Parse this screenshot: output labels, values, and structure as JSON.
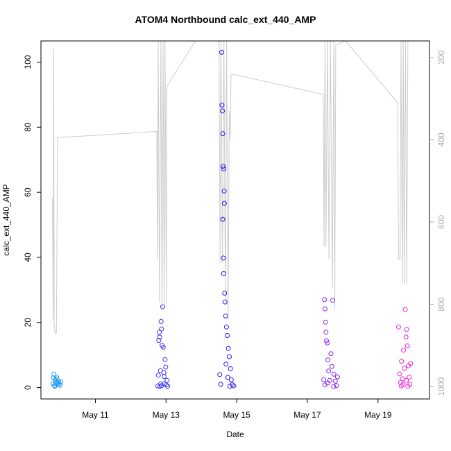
{
  "chart_data": {
    "type": "scatter",
    "title": "ATOM4 Northbound calc_ext_440_AMP",
    "xlabel": "Date",
    "ylabel": "calc_ext_440_AMP",
    "x_ticks": [
      "May 11",
      "May 13",
      "May 15",
      "May 17",
      "May 19"
    ],
    "y_ticks": [
      "0",
      "20",
      "40",
      "60",
      "80",
      "100"
    ],
    "right_ticks": [
      "200",
      "400",
      "600",
      "800",
      "1000"
    ],
    "xlim": [
      "2017-05-09T11:00",
      "2017-05-20T11:00"
    ],
    "ylim": [
      -3.5,
      106.5
    ],
    "right_ylim": [
      1030,
      160
    ],
    "right_axis_reversed": true,
    "grid": false,
    "legend": "none",
    "series": [
      {
        "color": "#1a9bf0",
        "points": [
          {
            "x": "2017-05-09T19:12",
            "y": 1.2
          },
          {
            "x": "2017-05-09T19:50",
            "y": 4.1
          },
          {
            "x": "2017-05-09T20:10",
            "y": 0.6
          },
          {
            "x": "2017-05-09T20:40",
            "y": 2.3
          },
          {
            "x": "2017-05-09T21:05",
            "y": 1.5
          },
          {
            "x": "2017-05-09T21:40",
            "y": 3.2
          },
          {
            "x": "2017-05-09T22:15",
            "y": 0.9
          },
          {
            "x": "2017-05-09T22:50",
            "y": 2.0
          },
          {
            "x": "2017-05-09T23:25",
            "y": 1.1
          },
          {
            "x": "2017-05-10T00:05",
            "y": 0.7
          },
          {
            "x": "2017-05-10T00:30",
            "y": 1.8
          },
          {
            "x": "2017-05-09T20:25",
            "y": 0.4
          },
          {
            "x": "2017-05-09T21:20",
            "y": 2.7
          },
          {
            "x": "2017-05-09T22:30",
            "y": 1.6
          },
          {
            "x": "2017-05-09T19:30",
            "y": 3.0
          }
        ]
      },
      {
        "color": "#3b35f5",
        "points": [
          {
            "x": "2017-05-12T18:20",
            "y": 0.5
          },
          {
            "x": "2017-05-12T18:45",
            "y": 3.8
          },
          {
            "x": "2017-05-12T19:05",
            "y": 14.5
          },
          {
            "x": "2017-05-12T19:25",
            "y": 17.0
          },
          {
            "x": "2017-05-12T19:40",
            "y": 15.5
          },
          {
            "x": "2017-05-12T20:10",
            "y": 5.2
          },
          {
            "x": "2017-05-12T20:35",
            "y": 20.3
          },
          {
            "x": "2017-05-12T20:55",
            "y": 18.0
          },
          {
            "x": "2017-05-12T21:20",
            "y": 13.0
          },
          {
            "x": "2017-05-12T21:40",
            "y": 24.8
          },
          {
            "x": "2017-05-12T22:05",
            "y": 12.4
          },
          {
            "x": "2017-05-12T22:30",
            "y": 4.6
          },
          {
            "x": "2017-05-12T22:55",
            "y": 1.2
          },
          {
            "x": "2017-05-12T23:20",
            "y": 8.6
          },
          {
            "x": "2017-05-12T23:45",
            "y": 6.3
          },
          {
            "x": "2017-05-13T00:10",
            "y": 0.8
          },
          {
            "x": "2017-05-13T00:40",
            "y": 2.2
          },
          {
            "x": "2017-05-13T01:05",
            "y": 0.4
          },
          {
            "x": "2017-05-12T21:00",
            "y": 0.6
          },
          {
            "x": "2017-05-12T20:20",
            "y": 1.1
          },
          {
            "x": "2017-05-12T19:50",
            "y": 0.3
          },
          {
            "x": "2017-05-12T22:40",
            "y": 3.4
          }
        ]
      },
      {
        "color": "#2a10f0",
        "points": [
          {
            "x": "2017-05-14T13:45",
            "y": 103
          },
          {
            "x": "2017-05-14T14:00",
            "y": 86.8
          },
          {
            "x": "2017-05-14T14:20",
            "y": 85.0
          },
          {
            "x": "2017-05-14T14:30",
            "y": 78.0
          },
          {
            "x": "2017-05-14T14:45",
            "y": 68.0
          },
          {
            "x": "2017-05-14T15:15",
            "y": 67.2
          },
          {
            "x": "2017-05-14T15:30",
            "y": 60.4
          },
          {
            "x": "2017-05-14T15:40",
            "y": 56.6
          },
          {
            "x": "2017-05-14T14:35",
            "y": 51.7
          },
          {
            "x": "2017-05-14T14:55",
            "y": 39.8
          },
          {
            "x": "2017-05-14T15:05",
            "y": 35.0
          },
          {
            "x": "2017-05-14T15:50",
            "y": 29.0
          },
          {
            "x": "2017-05-14T16:05",
            "y": 26.3
          },
          {
            "x": "2017-05-14T16:30",
            "y": 22.0
          },
          {
            "x": "2017-05-14T17:05",
            "y": 18.6
          },
          {
            "x": "2017-05-14T17:40",
            "y": 16.0
          },
          {
            "x": "2017-05-14T18:20",
            "y": 12.0
          },
          {
            "x": "2017-05-14T19:00",
            "y": 9.5
          },
          {
            "x": "2017-05-14T19:45",
            "y": 5.8
          },
          {
            "x": "2017-05-14T20:20",
            "y": 2.4
          },
          {
            "x": "2017-05-14T21:00",
            "y": 0.9
          },
          {
            "x": "2017-05-14T22:00",
            "y": 0.5
          },
          {
            "x": "2017-05-14T12:30",
            "y": 4.0
          },
          {
            "x": "2017-05-14T13:10",
            "y": 1.0
          },
          {
            "x": "2017-05-14T16:45",
            "y": 7.2
          },
          {
            "x": "2017-05-14T18:00",
            "y": 3.1
          },
          {
            "x": "2017-05-14T19:20",
            "y": 0.4
          }
        ]
      },
      {
        "color": "#8a1ff0",
        "points": [
          {
            "x": "2017-05-17T11:10",
            "y": 2.4
          },
          {
            "x": "2017-05-17T11:40",
            "y": 27.0
          },
          {
            "x": "2017-05-17T12:00",
            "y": 24.2
          },
          {
            "x": "2017-05-17T12:20",
            "y": 20.1
          },
          {
            "x": "2017-05-17T12:40",
            "y": 17.0
          },
          {
            "x": "2017-05-17T13:00",
            "y": 14.4
          },
          {
            "x": "2017-05-17T13:30",
            "y": 13.7
          },
          {
            "x": "2017-05-17T14:00",
            "y": 8.5
          },
          {
            "x": "2017-05-17T14:30",
            "y": 5.1
          },
          {
            "x": "2017-05-17T15:10",
            "y": 2.2
          },
          {
            "x": "2017-05-17T16:00",
            "y": 10.4
          },
          {
            "x": "2017-05-17T16:40",
            "y": 6.5
          },
          {
            "x": "2017-05-17T17:15",
            "y": 26.8
          },
          {
            "x": "2017-05-17T18:00",
            "y": 4.1
          },
          {
            "x": "2017-05-17T19:00",
            "y": 2.0
          },
          {
            "x": "2017-05-17T19:50",
            "y": 0.6
          },
          {
            "x": "2017-05-17T20:30",
            "y": 3.3
          },
          {
            "x": "2017-05-17T11:55",
            "y": 0.8
          },
          {
            "x": "2017-05-17T13:45",
            "y": 1.4
          },
          {
            "x": "2017-05-17T17:50",
            "y": 0.3
          }
        ]
      },
      {
        "color": "#f020d8",
        "points": [
          {
            "x": "2017-05-19T14:00",
            "y": 18.6
          },
          {
            "x": "2017-05-19T14:40",
            "y": 4.2
          },
          {
            "x": "2017-05-19T15:20",
            "y": 1.6
          },
          {
            "x": "2017-05-19T16:00",
            "y": 8.1
          },
          {
            "x": "2017-05-19T16:40",
            "y": 2.7
          },
          {
            "x": "2017-05-19T17:20",
            "y": 11.5
          },
          {
            "x": "2017-05-19T18:00",
            "y": 5.9
          },
          {
            "x": "2017-05-19T18:30",
            "y": 24.0
          },
          {
            "x": "2017-05-19T19:00",
            "y": 15.5
          },
          {
            "x": "2017-05-19T19:30",
            "y": 17.9
          },
          {
            "x": "2017-05-19T20:00",
            "y": 12.8
          },
          {
            "x": "2017-05-19T20:40",
            "y": 6.7
          },
          {
            "x": "2017-05-19T21:10",
            "y": 3.2
          },
          {
            "x": "2017-05-19T21:40",
            "y": 1.0
          },
          {
            "x": "2017-05-19T22:10",
            "y": 7.4
          },
          {
            "x": "2017-05-19T15:50",
            "y": 0.5
          },
          {
            "x": "2017-05-19T17:00",
            "y": 0.9
          },
          {
            "x": "2017-05-19T19:20",
            "y": 2.2
          },
          {
            "x": "2017-05-19T20:20",
            "y": 0.4
          }
        ]
      },
      {
        "color": "#cccccc",
        "axis": "right",
        "type": "line",
        "points": [
          {
            "x": "2017-05-09T18:50",
            "y": 540
          },
          {
            "x": "2017-05-09T19:20",
            "y": 840
          },
          {
            "x": "2017-05-09T19:40",
            "y": 180
          },
          {
            "x": "2017-05-09T20:00",
            "y": 850
          },
          {
            "x": "2017-05-09T20:30",
            "y": 870
          },
          {
            "x": "2017-05-09T21:30",
            "y": 870
          },
          {
            "x": "2017-05-09T22:15",
            "y": 395
          },
          {
            "x": "2017-05-12T17:40",
            "y": 380
          },
          {
            "x": "2017-05-12T18:10",
            "y": 690
          },
          {
            "x": "2017-05-12T18:40",
            "y": 160
          },
          {
            "x": "2017-05-12T19:30",
            "y": 795
          },
          {
            "x": "2017-05-12T20:30",
            "y": 160
          },
          {
            "x": "2017-05-12T21:15",
            "y": 810
          },
          {
            "x": "2017-05-12T22:00",
            "y": 160
          },
          {
            "x": "2017-05-12T22:40",
            "y": 810
          },
          {
            "x": "2017-05-12T23:20",
            "y": 160
          },
          {
            "x": "2017-05-13T00:10",
            "y": 800
          },
          {
            "x": "2017-05-13T00:40",
            "y": 270
          },
          {
            "x": "2017-05-13T20:00",
            "y": 160
          },
          {
            "x": "2017-05-14T12:00",
            "y": 160
          },
          {
            "x": "2017-05-14T12:40",
            "y": 700
          },
          {
            "x": "2017-05-14T13:20",
            "y": 160
          },
          {
            "x": "2017-05-14T14:20",
            "y": 700
          },
          {
            "x": "2017-05-14T15:20",
            "y": 160
          },
          {
            "x": "2017-05-14T16:20",
            "y": 800
          },
          {
            "x": "2017-05-14T17:10",
            "y": 160
          },
          {
            "x": "2017-05-14T18:10",
            "y": 840
          },
          {
            "x": "2017-05-14T19:00",
            "y": 330
          },
          {
            "x": "2017-05-14T19:30",
            "y": 400
          },
          {
            "x": "2017-05-14T20:10",
            "y": 240
          },
          {
            "x": "2017-05-17T10:50",
            "y": 290
          },
          {
            "x": "2017-05-17T11:20",
            "y": 660
          },
          {
            "x": "2017-05-17T12:00",
            "y": 160
          },
          {
            "x": "2017-05-17T12:40",
            "y": 660
          },
          {
            "x": "2017-05-17T13:40",
            "y": 160
          },
          {
            "x": "2017-05-17T14:40",
            "y": 690
          },
          {
            "x": "2017-05-17T15:40",
            "y": 160
          },
          {
            "x": "2017-05-17T17:00",
            "y": 760
          },
          {
            "x": "2017-05-17T18:00",
            "y": 160
          },
          {
            "x": "2017-05-17T18:40",
            "y": 810
          },
          {
            "x": "2017-05-17T19:20",
            "y": 170
          },
          {
            "x": "2017-05-18T02:00",
            "y": 160
          },
          {
            "x": "2017-05-19T13:20",
            "y": 310
          },
          {
            "x": "2017-05-19T14:00",
            "y": 690
          },
          {
            "x": "2017-05-19T15:00",
            "y": 690
          },
          {
            "x": "2017-05-19T15:40",
            "y": 160
          },
          {
            "x": "2017-05-19T16:30",
            "y": 750
          },
          {
            "x": "2017-05-19T17:10",
            "y": 160
          },
          {
            "x": "2017-05-19T17:50",
            "y": 750
          },
          {
            "x": "2017-05-19T18:40",
            "y": 160
          },
          {
            "x": "2017-05-19T19:30",
            "y": 750
          },
          {
            "x": "2017-05-19T20:20",
            "y": 160
          }
        ]
      }
    ]
  }
}
